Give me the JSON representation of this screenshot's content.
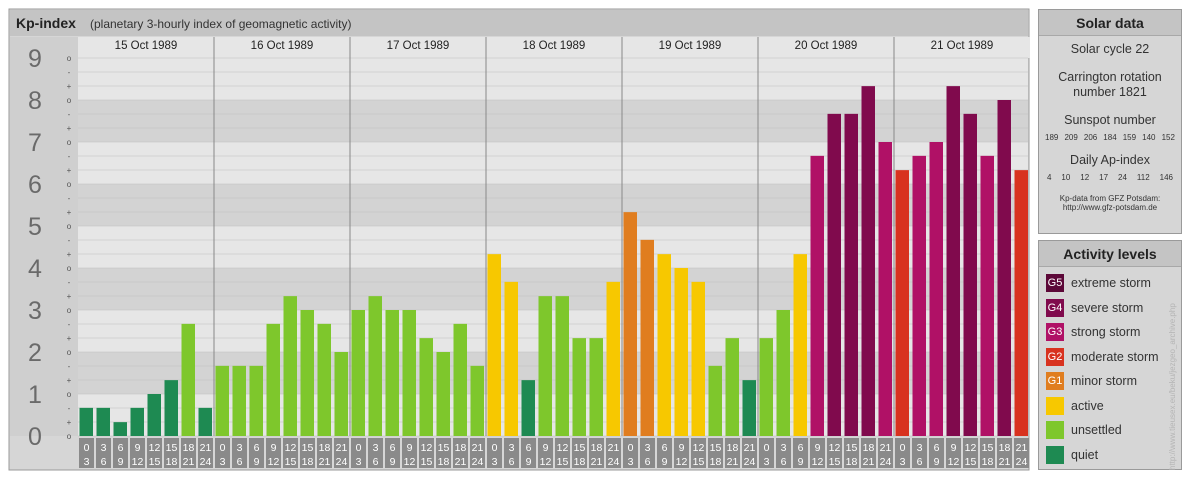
{
  "title": "Kp-index",
  "subtitle": "(planetary 3-hourly index of geomagnetic activity)",
  "chart_data": {
    "type": "bar",
    "y_range": [
      0,
      9
    ],
    "y_ticks": [
      "0",
      "1",
      "2",
      "3",
      "4",
      "5",
      "6",
      "7",
      "8",
      "9"
    ],
    "minor_marks": [
      "o",
      "+",
      "-"
    ],
    "days": [
      {
        "date": "15 Oct 1989",
        "kp": [
          0.67,
          0.67,
          0.33,
          0.67,
          1.0,
          1.33,
          2.67,
          0.67
        ]
      },
      {
        "date": "16 Oct 1989",
        "kp": [
          1.67,
          1.67,
          1.67,
          2.67,
          3.33,
          3.0,
          2.67,
          2.0
        ]
      },
      {
        "date": "17 Oct 1989",
        "kp": [
          3.0,
          3.33,
          3.0,
          3.0,
          2.33,
          2.0,
          2.67,
          1.67
        ]
      },
      {
        "date": "18 Oct 1989",
        "kp": [
          4.33,
          3.67,
          1.33,
          3.33,
          3.33,
          2.33,
          2.33,
          3.67
        ]
      },
      {
        "date": "19 Oct 1989",
        "kp": [
          5.33,
          4.67,
          4.33,
          4.0,
          3.67,
          1.67,
          2.33,
          1.33
        ]
      },
      {
        "date": "20 Oct 1989",
        "kp": [
          2.33,
          3.0,
          4.33,
          6.67,
          7.67,
          7.67,
          8.33,
          7.0
        ]
      },
      {
        "date": "21 Oct 1989",
        "kp": [
          6.33,
          6.67,
          7.0,
          8.33,
          7.67,
          6.67,
          8.0,
          6.33
        ]
      }
    ],
    "interval_starts": [
      "0",
      "3",
      "6",
      "9",
      "12",
      "15",
      "18",
      "21"
    ],
    "interval_ends": [
      "3",
      "6",
      "9",
      "12",
      "15",
      "18",
      "21",
      "24"
    ]
  },
  "colors": {
    "quiet": "#1e8a52",
    "unsettled": "#7ec72c",
    "active": "#f7c800",
    "G1": "#e07d1f",
    "G2": "#d8321f",
    "G3": "#b01166",
    "G4": "#800a4d",
    "G5": "#5c0838"
  },
  "solar": {
    "heading": "Solar data",
    "cycle": "Solar cycle 22",
    "carrington_1": "Carrington rotation",
    "carrington_2": "number 1821",
    "sunspot_label": "Sunspot number",
    "sunspots": [
      "189",
      "209",
      "206",
      "184",
      "159",
      "140",
      "152"
    ],
    "ap_label": "Daily Ap-index",
    "ap": [
      "4",
      "10",
      "12",
      "17",
      "24",
      "112",
      "146"
    ],
    "source_1": "Kp-data from GFZ Potsdam:",
    "source_2": "http://www.gfz-potsdam.de"
  },
  "activity": {
    "heading": "Activity levels",
    "levels": [
      {
        "code": "G5",
        "label": "extreme storm",
        "color": "#5c0838"
      },
      {
        "code": "G4",
        "label": "severe storm",
        "color": "#800a4d"
      },
      {
        "code": "G3",
        "label": "strong storm",
        "color": "#b01166"
      },
      {
        "code": "G2",
        "label": "moderate storm",
        "color": "#d8321f"
      },
      {
        "code": "G1",
        "label": "minor storm",
        "color": "#e07d1f"
      },
      {
        "code": "",
        "label": "active",
        "color": "#f7c800"
      },
      {
        "code": "",
        "label": "unsettled",
        "color": "#7ec72c"
      },
      {
        "code": "",
        "label": "quiet",
        "color": "#1e8a52"
      }
    ]
  },
  "watermark": "http://www.tieusex.eu/beku/jezgeo_archive.php"
}
